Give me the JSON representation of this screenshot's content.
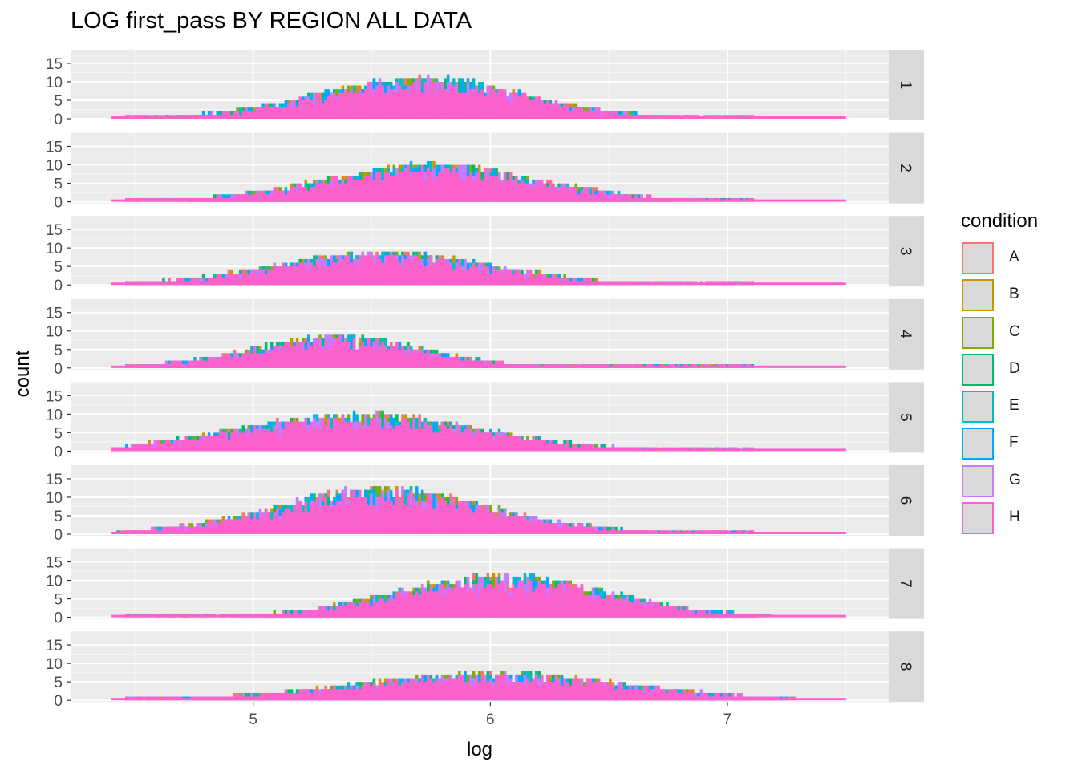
{
  "chart_data": {
    "type": "histogram",
    "title": "LOG first_pass BY REGION ALL DATA",
    "xlabel": "log",
    "ylabel": "count",
    "xlim": [
      4.4,
      7.5
    ],
    "x_ticks": [
      "5",
      "6",
      "7"
    ],
    "x_tick_values": [
      5,
      6,
      7
    ],
    "ylim": [
      0,
      15
    ],
    "y_ticks": [
      "0",
      "5",
      "10",
      "15"
    ],
    "y_tick_values": [
      0,
      5,
      10,
      15
    ],
    "stacking": "overlaid (later conditions drawn on top)",
    "facets": [
      "1",
      "2",
      "3",
      "4",
      "5",
      "6",
      "7",
      "8"
    ],
    "legend": {
      "title": "condition",
      "position": "right",
      "entries": [
        {
          "label": "A",
          "color": "#F8766D"
        },
        {
          "label": "B",
          "color": "#CD9600"
        },
        {
          "label": "C",
          "color": "#7CAE00"
        },
        {
          "label": "D",
          "color": "#00BE67"
        },
        {
          "label": "E",
          "color": "#00BFC4"
        },
        {
          "label": "F",
          "color": "#00A9FF"
        },
        {
          "label": "G",
          "color": "#C77CFF"
        },
        {
          "label": "H",
          "color": "#FF61CC"
        }
      ]
    },
    "region_profiles": [
      {
        "region": "1",
        "center": 5.7,
        "spread": 0.42,
        "peak": 9,
        "x_from": 4.4,
        "x_to": 7.5
      },
      {
        "region": "2",
        "center": 5.75,
        "spread": 0.45,
        "peak": 8,
        "x_from": 4.4,
        "x_to": 7.5
      },
      {
        "region": "3",
        "center": 5.55,
        "spread": 0.45,
        "peak": 7,
        "x_from": 4.4,
        "x_to": 7.5
      },
      {
        "region": "4",
        "center": 5.35,
        "spread": 0.35,
        "peak": 7,
        "x_from": 4.4,
        "x_to": 7.5
      },
      {
        "region": "5",
        "center": 5.45,
        "spread": 0.5,
        "peak": 8,
        "x_from": 4.4,
        "x_to": 7.5
      },
      {
        "region": "6",
        "center": 5.55,
        "spread": 0.45,
        "peak": 10,
        "x_from": 4.4,
        "x_to": 7.5
      },
      {
        "region": "7",
        "center": 6.05,
        "spread": 0.45,
        "peak": 9,
        "x_from": 4.4,
        "x_to": 7.5
      },
      {
        "region": "8",
        "center": 6.0,
        "spread": 0.55,
        "peak": 6,
        "x_from": 4.4,
        "x_to": 7.5
      }
    ]
  }
}
